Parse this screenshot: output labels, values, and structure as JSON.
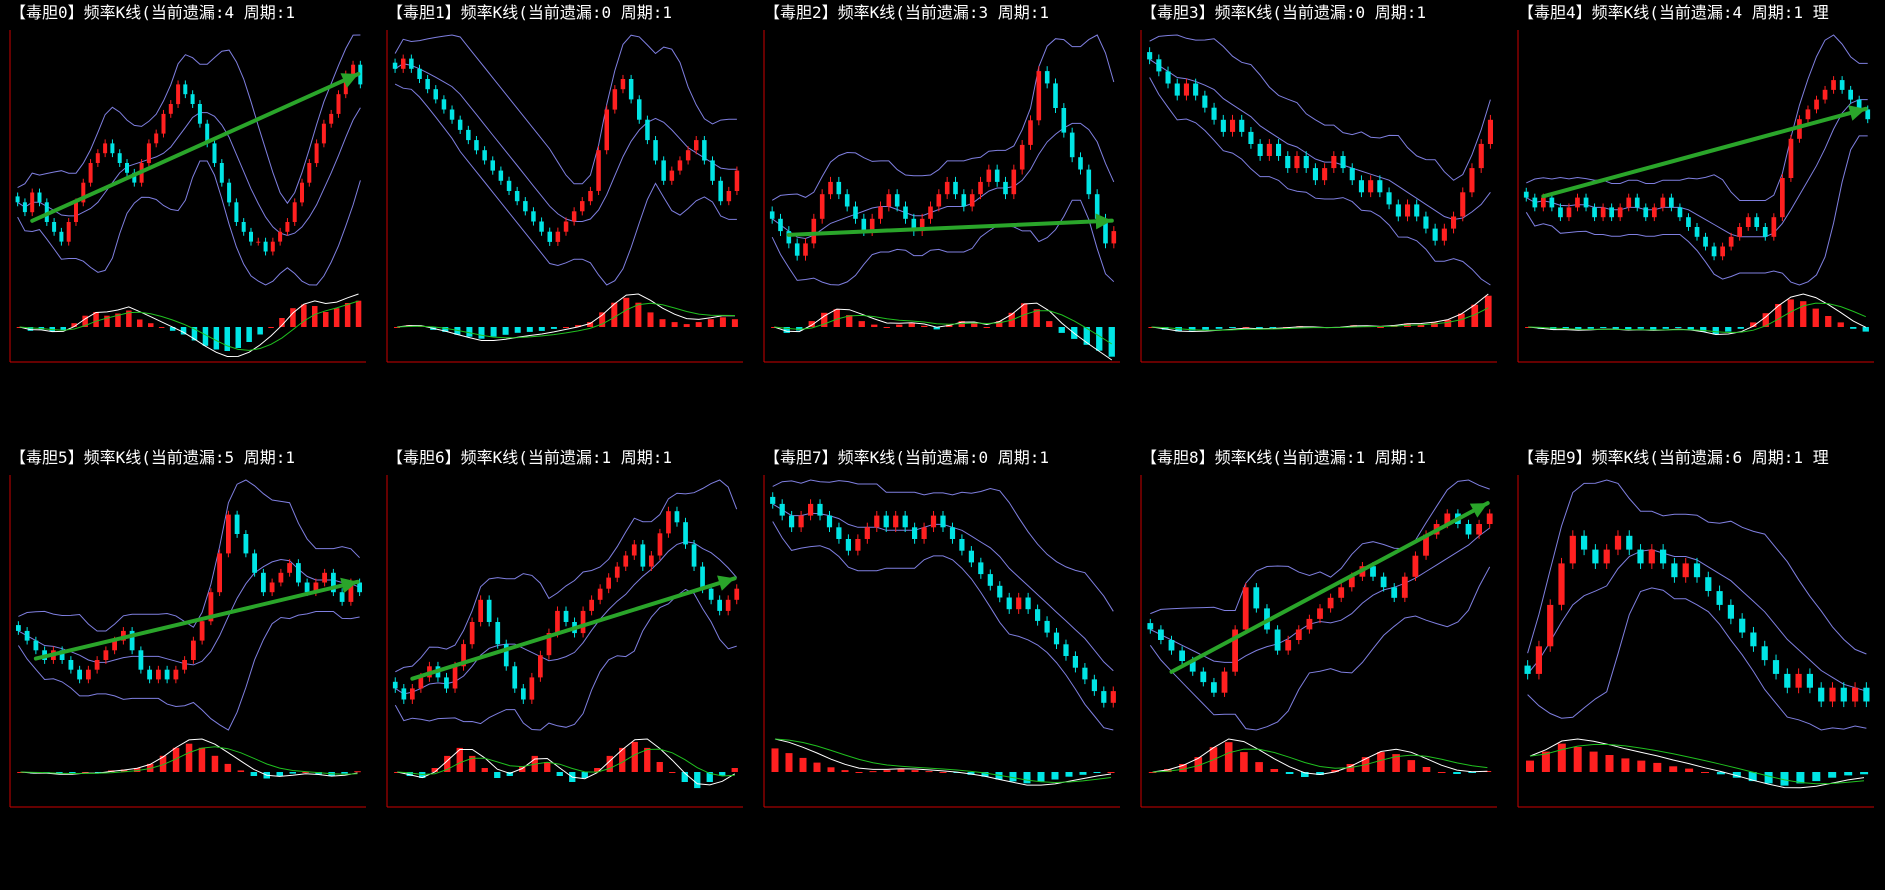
{
  "colors": {
    "background": "#000000",
    "title": "#ffffff",
    "axis": "#cc0000",
    "candle_up": "#ff2020",
    "candle_down": "#00e5e5",
    "band": "#7f7fe0",
    "trend_arrow": "#2aa52a",
    "macd_dif": "#ffffff",
    "macd_dea": "#20c020"
  },
  "panels": [
    {
      "title": "【毒胆0】频率K线(当前遗漏:4 周期:1"
    },
    {
      "title": "【毒胆1】频率K线(当前遗漏:0 周期:1"
    },
    {
      "title": "【毒胆2】频率K线(当前遗漏:3 周期:1"
    },
    {
      "title": "【毒胆3】频率K线(当前遗漏:0 周期:1"
    },
    {
      "title": "【毒胆4】频率K线(当前遗漏:4 周期:1 理"
    },
    {
      "title": "【毒胆5】频率K线(当前遗漏:5 周期:1"
    },
    {
      "title": "【毒胆6】频率K线(当前遗漏:1 周期:1"
    },
    {
      "title": "【毒胆7】频率K线(当前遗漏:0 周期:1"
    },
    {
      "title": "【毒胆8】频率K线(当前遗漏:1 周期:1"
    },
    {
      "title": "【毒胆9】频率K线(当前遗漏:6 周期:1 理"
    }
  ],
  "chart_data": [
    {
      "type": "candlestick",
      "title": "【毒胆0】频率K线(当前遗漏:4 周期:1",
      "close": [
        10,
        9,
        11,
        10,
        8,
        7,
        6,
        8,
        10,
        12,
        14,
        15,
        16,
        15,
        14,
        13,
        12,
        14,
        16,
        17,
        19,
        20,
        22,
        21,
        20,
        18,
        16,
        14,
        12,
        10,
        8,
        7,
        6,
        6,
        5,
        6,
        7,
        8,
        10,
        12,
        14,
        16,
        18,
        19,
        21,
        23,
        24,
        22
      ],
      "trend": "up",
      "macd": [
        0,
        -0.5,
        -0.3,
        -0.6,
        -0.4,
        0.5,
        1.5,
        2,
        1.5,
        1.8,
        2.2,
        1,
        0.5,
        0,
        -0.5,
        -1,
        -1.8,
        -2.5,
        -3,
        -3.2,
        -2.8,
        -2,
        -1,
        0,
        1.2,
        2.5,
        3,
        2.8,
        2,
        2.5,
        3.2,
        3.5
      ]
    },
    {
      "type": "candlestick",
      "title": "【毒胆1】频率K线(当前遗漏:0 周期:1",
      "close": [
        22,
        23,
        22,
        21,
        20,
        19,
        18,
        17,
        16,
        15,
        14,
        13,
        12,
        11,
        10,
        9,
        8,
        7,
        6,
        5,
        6,
        7,
        8,
        9,
        10,
        14,
        18,
        20,
        21,
        19,
        17,
        15,
        13,
        11,
        12,
        13,
        14,
        15,
        13,
        11,
        9,
        10,
        12
      ],
      "trend": "none",
      "macd": [
        0,
        0.2,
        0.1,
        -0.3,
        -0.5,
        -0.8,
        -1,
        -1.2,
        -1,
        -0.8,
        -0.6,
        -0.5,
        -0.4,
        -0.2,
        0,
        0.2,
        0.5,
        1.5,
        2.5,
        3,
        2.5,
        1.5,
        0.8,
        0.5,
        0.3,
        0.5,
        0.8,
        1,
        0.8
      ]
    },
    {
      "type": "candlestick",
      "title": "【毒胆2】频率K线(当前遗漏:3 周期:1",
      "close": [
        10,
        9,
        8,
        7,
        8,
        10,
        12,
        13,
        12,
        11,
        10,
        9,
        10,
        11,
        12,
        11,
        10,
        9,
        10,
        11,
        12,
        13,
        12,
        11,
        12,
        13,
        14,
        13,
        12,
        14,
        16,
        18,
        22,
        21,
        19,
        17,
        15,
        14,
        12,
        10,
        8,
        9
      ],
      "trend": "up",
      "macd": [
        0,
        -0.5,
        -0.3,
        0.5,
        1.2,
        1.5,
        1,
        0.5,
        0.2,
        0,
        0.2,
        0.3,
        0.1,
        -0.2,
        0.2,
        0.5,
        0.3,
        0,
        0.5,
        1.2,
        2,
        1.5,
        0.5,
        -0.5,
        -1,
        -1.5,
        -2,
        -2.5
      ]
    },
    {
      "type": "candlestick",
      "title": "【毒胆3】频率K线(当前遗漏:0 周期:1",
      "close": [
        20,
        19,
        18,
        17,
        18,
        17,
        16,
        15,
        14,
        15,
        14,
        13,
        12,
        13,
        12,
        11,
        12,
        11,
        10,
        11,
        12,
        11,
        10,
        9,
        10,
        9,
        8,
        7,
        8,
        7,
        6,
        5,
        6,
        7,
        9,
        11,
        13,
        15
      ],
      "trend": "none",
      "macd": [
        0,
        -0.3,
        -0.5,
        -0.4,
        -0.3,
        -0.2,
        -0.1,
        0,
        -0.2,
        -0.1,
        0,
        0.1,
        0,
        -0.1,
        0,
        0.2,
        0.1,
        0,
        0.2,
        0.4,
        0.3,
        0.5,
        0.8,
        1.5,
        2.5,
        3.5
      ]
    },
    {
      "type": "candlestick",
      "title": "【毒胆4】频率K线(当前遗漏:4 周期:1 理",
      "close": [
        12,
        11,
        12,
        11,
        10,
        11,
        12,
        11,
        10,
        11,
        10,
        11,
        12,
        11,
        10,
        11,
        12,
        11,
        10,
        9,
        8,
        7,
        6,
        7,
        8,
        9,
        10,
        9,
        8,
        10,
        14,
        18,
        20,
        21,
        22,
        23,
        24,
        23,
        22,
        21,
        20
      ],
      "trend": "up",
      "macd": [
        0,
        -0.2,
        -0.3,
        -0.2,
        -0.3,
        -0.2,
        -0.1,
        -0.2,
        -0.3,
        -0.2,
        -0.3,
        -0.2,
        -0.1,
        -0.3,
        -0.5,
        -0.8,
        -0.5,
        -0.2,
        0.5,
        1.5,
        2.5,
        3,
        2.8,
        2,
        1.2,
        0.5,
        -0.2,
        -0.5
      ]
    },
    {
      "type": "candlestick",
      "title": "【毒胆5】频率K线(当前遗漏:5 周期:1",
      "close": [
        10,
        9,
        8,
        7,
        8,
        7,
        6,
        5,
        6,
        7,
        8,
        9,
        10,
        8,
        6,
        5,
        6,
        5,
        6,
        7,
        9,
        11,
        14,
        18,
        22,
        20,
        18,
        16,
        14,
        15,
        16,
        17,
        15,
        14,
        15,
        16,
        14,
        13,
        15,
        14
      ],
      "trend": "up",
      "macd": [
        0,
        -0.2,
        -0.1,
        -0.3,
        -0.2,
        0,
        -0.1,
        0.2,
        0.3,
        0.5,
        1,
        2,
        3,
        3.5,
        3,
        2,
        1,
        0.2,
        -0.5,
        -0.8,
        -0.5,
        -0.2,
        0,
        -0.3,
        -0.5,
        -0.2,
        0.1
      ]
    },
    {
      "type": "candlestick",
      "title": "【毒胆6】频率K线(当前遗漏:1 周期:1",
      "close": [
        8,
        7,
        8,
        9,
        10,
        9,
        8,
        10,
        12,
        14,
        16,
        14,
        12,
        10,
        8,
        7,
        9,
        11,
        13,
        15,
        14,
        13,
        15,
        16,
        17,
        18,
        19,
        20,
        21,
        19,
        20,
        22,
        24,
        23,
        21,
        19,
        17,
        16,
        15,
        16,
        17
      ],
      "trend": "up",
      "macd": [
        0,
        -0.2,
        -0.3,
        0.2,
        0.8,
        1.2,
        0.8,
        0.2,
        -0.3,
        -0.2,
        0.3,
        0.8,
        0.5,
        -0.2,
        -0.5,
        -0.3,
        0.2,
        0.8,
        1.2,
        1.5,
        1.2,
        0.5,
        0,
        -0.5,
        -0.8,
        -0.5,
        -0.2,
        0.2
      ]
    },
    {
      "type": "candlestick",
      "title": "【毒胆7】频率K线(当前遗漏:0 周期:1",
      "close": [
        22,
        21,
        20,
        21,
        22,
        21,
        20,
        19,
        18,
        19,
        20,
        21,
        20,
        21,
        20,
        19,
        20,
        21,
        20,
        19,
        18,
        17,
        16,
        15,
        14,
        13,
        14,
        13,
        12,
        11,
        10,
        9,
        8,
        7,
        6,
        5,
        6
      ],
      "trend": "none",
      "macd": [
        2.5,
        2,
        1.5,
        1,
        0.5,
        0.2,
        0,
        0.1,
        0.2,
        0.3,
        0.2,
        0.1,
        0,
        -0.1,
        -0.3,
        -0.5,
        -0.8,
        -1,
        -1.2,
        -1,
        -0.8,
        -0.5,
        -0.3,
        -0.1,
        0
      ]
    },
    {
      "type": "candlestick",
      "title": "【毒胆8】频率K线(当前遗漏:1 周期:1",
      "close": [
        12,
        11,
        10,
        9,
        8,
        7,
        6,
        8,
        12,
        16,
        14,
        12,
        10,
        11,
        12,
        13,
        14,
        15,
        16,
        17,
        18,
        17,
        16,
        15,
        17,
        19,
        21,
        22,
        23,
        22,
        21,
        22,
        23
      ],
      "trend": "up",
      "macd": [
        0,
        0.3,
        0.8,
        1.5,
        2.5,
        3,
        2,
        1,
        0.3,
        -0.2,
        -0.5,
        -0.3,
        0.2,
        0.8,
        1.5,
        2,
        1.8,
        1.2,
        0.5,
        0,
        -0.2,
        -0.1,
        0.1
      ]
    },
    {
      "type": "candlestick",
      "title": "【毒胆9】频率K线(当前遗漏:6 周期:1 理",
      "close": [
        10,
        12,
        15,
        18,
        20,
        19,
        18,
        19,
        20,
        19,
        18,
        19,
        18,
        17,
        18,
        17,
        16,
        15,
        14,
        13,
        12,
        11,
        10,
        9,
        10,
        9,
        8,
        9,
        8,
        9,
        8
      ],
      "trend": "none",
      "macd": [
        1,
        1.8,
        2.5,
        2.2,
        1.8,
        1.5,
        1.2,
        1,
        0.8,
        0.5,
        0.3,
        0,
        -0.2,
        -0.5,
        -0.8,
        -1,
        -1.2,
        -1,
        -0.8,
        -0.5,
        -0.3,
        -0.2
      ]
    }
  ]
}
